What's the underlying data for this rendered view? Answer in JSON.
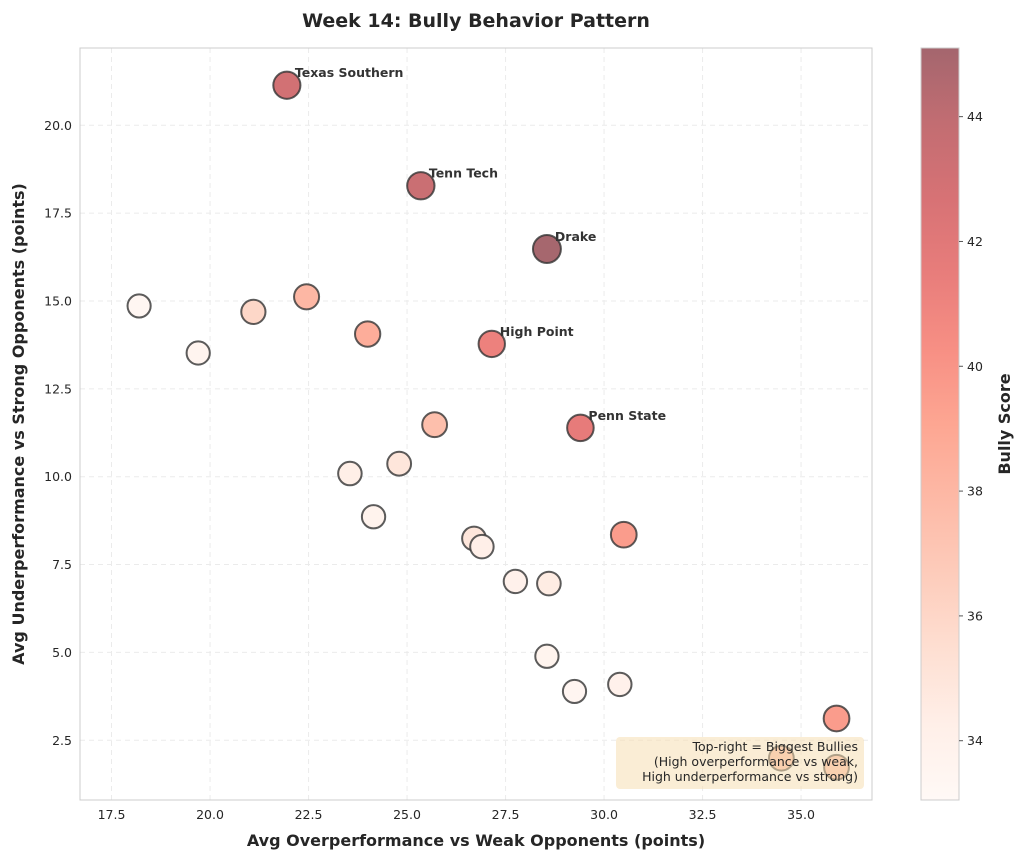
{
  "chart_data": {
    "type": "scatter",
    "title": "Week 14: Bully Behavior Pattern",
    "xlabel": "Avg Overperformance vs Weak Opponents (points)",
    "ylabel": "Avg Underperformance vs Strong Opponents (points)",
    "xlim": [
      16.7,
      36.8
    ],
    "ylim": [
      0.8,
      22.2
    ],
    "xticks": [
      17.5,
      20.0,
      22.5,
      25.0,
      27.5,
      30.0,
      32.5,
      35.0
    ],
    "yticks": [
      2.5,
      5.0,
      7.5,
      10.0,
      12.5,
      15.0,
      17.5,
      20.0
    ],
    "grid": true,
    "colormap": "Reds",
    "colorbar": {
      "label": "Bully Score",
      "range": [
        33.05,
        45.1
      ],
      "ticks": [
        34,
        36,
        38,
        40,
        42,
        44
      ]
    },
    "annotation": {
      "lines": [
        "Top-right = Biggest Bullies",
        "(High overperformance vs weak,",
        "High underperformance vs strong)"
      ],
      "background": "#f5deb3",
      "placement": "bottom-right"
    },
    "points": [
      {
        "x": 21.95,
        "y": 21.14,
        "score": 43.0,
        "label": "Texas Southern"
      },
      {
        "x": 25.35,
        "y": 18.28,
        "score": 43.5,
        "label": "Tenn Tech"
      },
      {
        "x": 28.55,
        "y": 16.48,
        "score": 45.0,
        "label": "Drake"
      },
      {
        "x": 27.15,
        "y": 13.78,
        "score": 41.2,
        "label": "High Point"
      },
      {
        "x": 29.4,
        "y": 11.39,
        "score": 41.6,
        "label": "Penn State"
      },
      {
        "x": 18.2,
        "y": 14.86,
        "score": 33.4
      },
      {
        "x": 19.7,
        "y": 13.52,
        "score": 33.6
      },
      {
        "x": 21.1,
        "y": 14.69,
        "score": 36.0
      },
      {
        "x": 22.45,
        "y": 15.12,
        "score": 38.0
      },
      {
        "x": 24.0,
        "y": 14.06,
        "score": 38.6
      },
      {
        "x": 25.7,
        "y": 11.48,
        "score": 37.5
      },
      {
        "x": 23.55,
        "y": 10.09,
        "score": 34.3
      },
      {
        "x": 24.8,
        "y": 10.37,
        "score": 35.0
      },
      {
        "x": 24.15,
        "y": 8.86,
        "score": 33.8
      },
      {
        "x": 26.7,
        "y": 8.24,
        "score": 35.0
      },
      {
        "x": 26.9,
        "y": 8.01,
        "score": 34.2
      },
      {
        "x": 30.5,
        "y": 8.35,
        "score": 39.6
      },
      {
        "x": 27.75,
        "y": 7.02,
        "score": 34.0
      },
      {
        "x": 28.6,
        "y": 6.96,
        "score": 34.6
      },
      {
        "x": 28.55,
        "y": 4.89,
        "score": 33.7
      },
      {
        "x": 29.25,
        "y": 3.89,
        "score": 33.5
      },
      {
        "x": 30.4,
        "y": 4.09,
        "score": 34.0
      },
      {
        "x": 35.9,
        "y": 3.12,
        "score": 39.6
      },
      {
        "x": 34.5,
        "y": 1.99,
        "score": 37.5
      },
      {
        "x": 35.9,
        "y": 1.73,
        "score": 37.5
      }
    ]
  }
}
